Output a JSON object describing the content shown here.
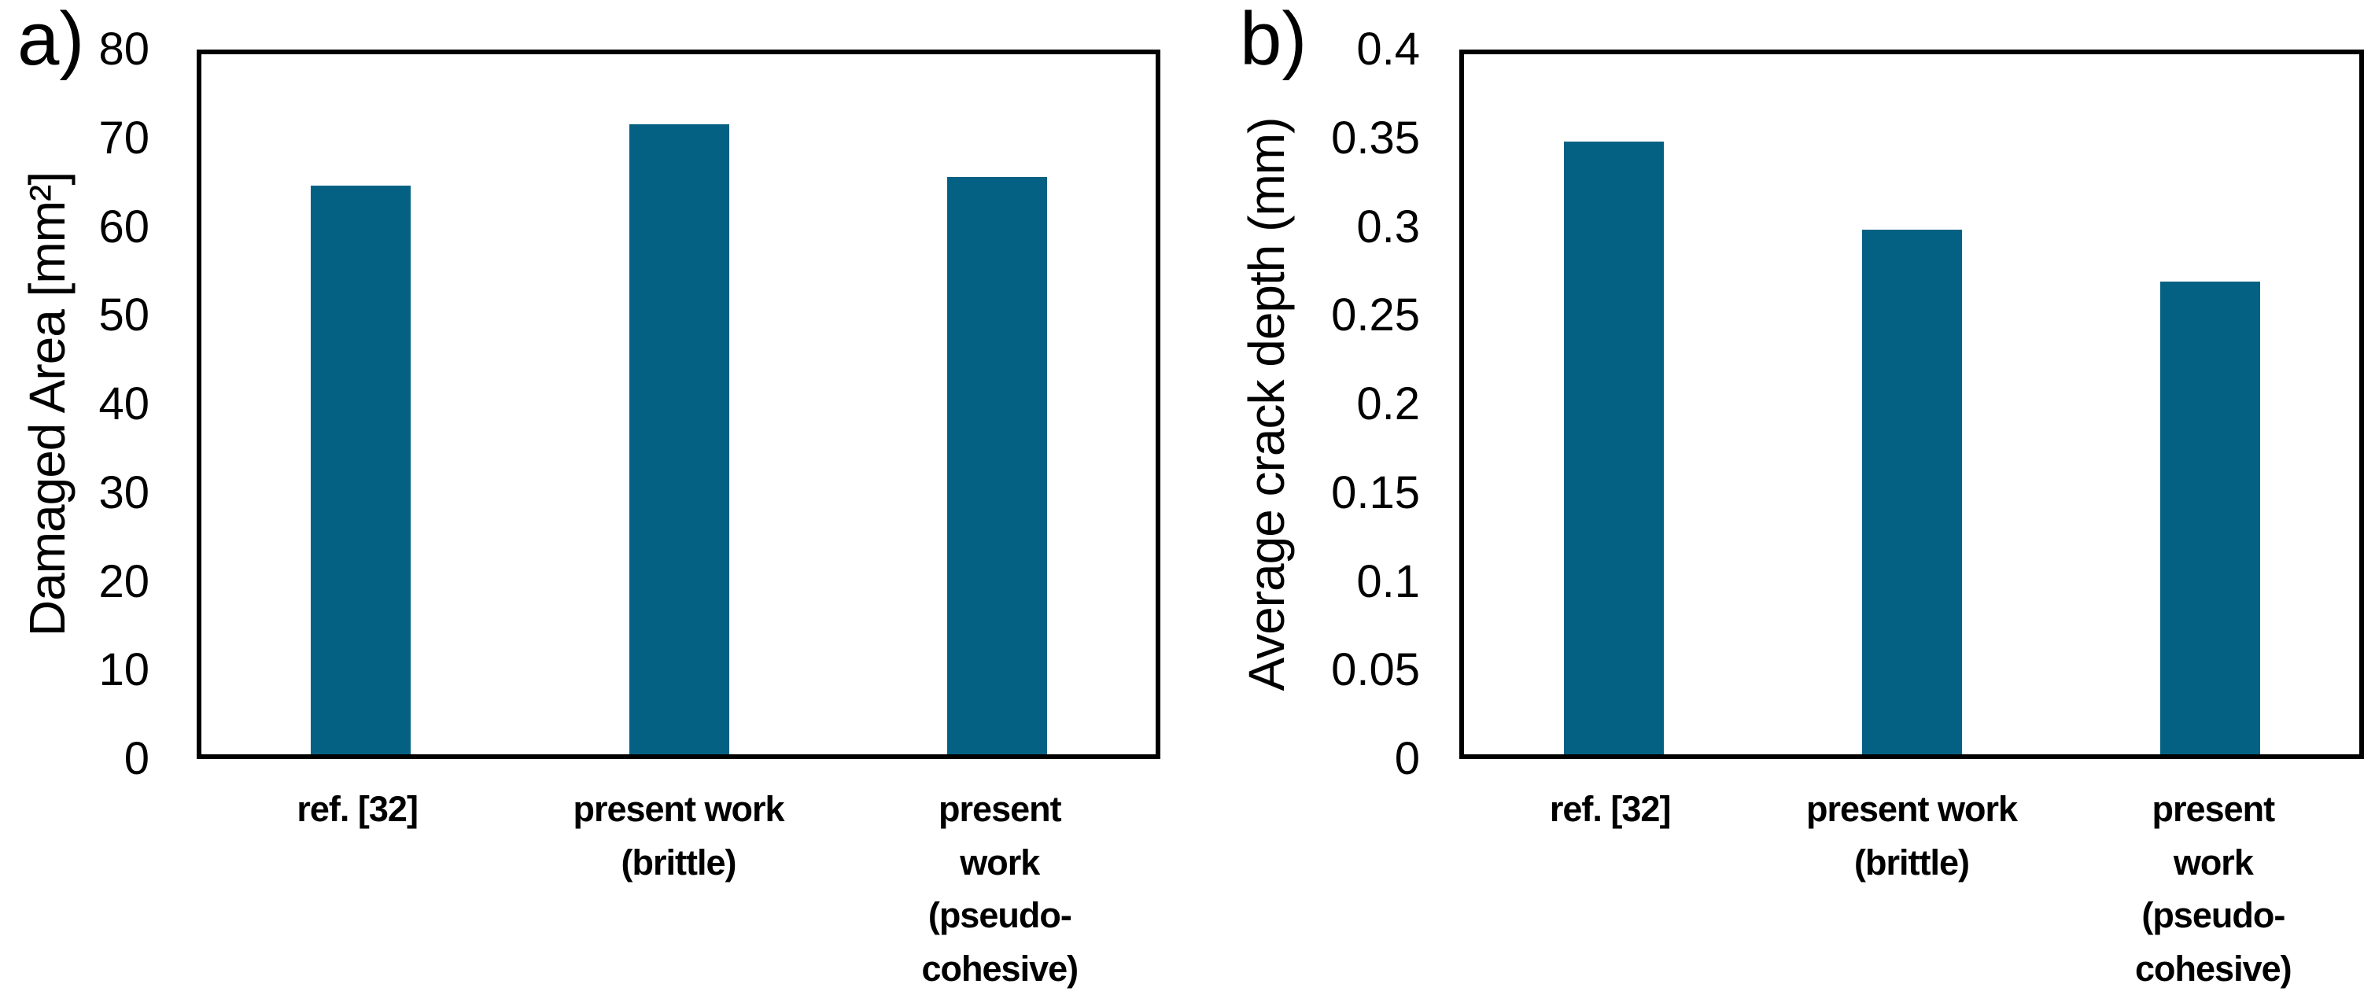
{
  "page": {
    "background": "#ffffff",
    "text_color": "#000000",
    "axis_color": "#000000"
  },
  "chart_data": [
    {
      "type": "bar",
      "panel_label": "a)",
      "title": "",
      "xlabel": "",
      "ylabel": "Damaged Area [mm²]",
      "categories": [
        "ref. [32]",
        "present work (brittle)",
        "present work (pseudo-cohesive)"
      ],
      "category_lines": [
        [
          "ref. [32]"
        ],
        [
          "present work",
          "(brittle)"
        ],
        [
          "present work",
          "(pseudo-cohesive)"
        ]
      ],
      "values": [
        65,
        72,
        66
      ],
      "ylim": [
        0,
        80
      ],
      "ytick_values": [
        0,
        10,
        20,
        30,
        40,
        50,
        60,
        70,
        80
      ],
      "ytick_labels": [
        "0",
        "10",
        "20",
        "30",
        "40",
        "50",
        "60",
        "70",
        "80"
      ],
      "grid": false,
      "legend": null,
      "bar_color": "#046183"
    },
    {
      "type": "bar",
      "panel_label": "b)",
      "title": "",
      "xlabel": "",
      "ylabel": "Average crack depth (mm)",
      "categories": [
        "ref. [32]",
        "present work (brittle)",
        "present work (pseudo-cohesive)"
      ],
      "category_lines": [
        [
          "ref. [32]"
        ],
        [
          "present work",
          "(brittle)"
        ],
        [
          "present work",
          "(pseudo-cohesive)"
        ]
      ],
      "values": [
        0.35,
        0.3,
        0.27
      ],
      "ylim": [
        0,
        0.4
      ],
      "ytick_values": [
        0,
        0.05,
        0.1,
        0.15,
        0.2,
        0.25,
        0.3,
        0.35,
        0.4
      ],
      "ytick_labels": [
        "0",
        "0.05",
        "0.1",
        "0.15",
        "0.2",
        "0.25",
        "0.3",
        "0.35",
        "0.4"
      ],
      "grid": false,
      "legend": null,
      "bar_color": "#046183"
    }
  ]
}
